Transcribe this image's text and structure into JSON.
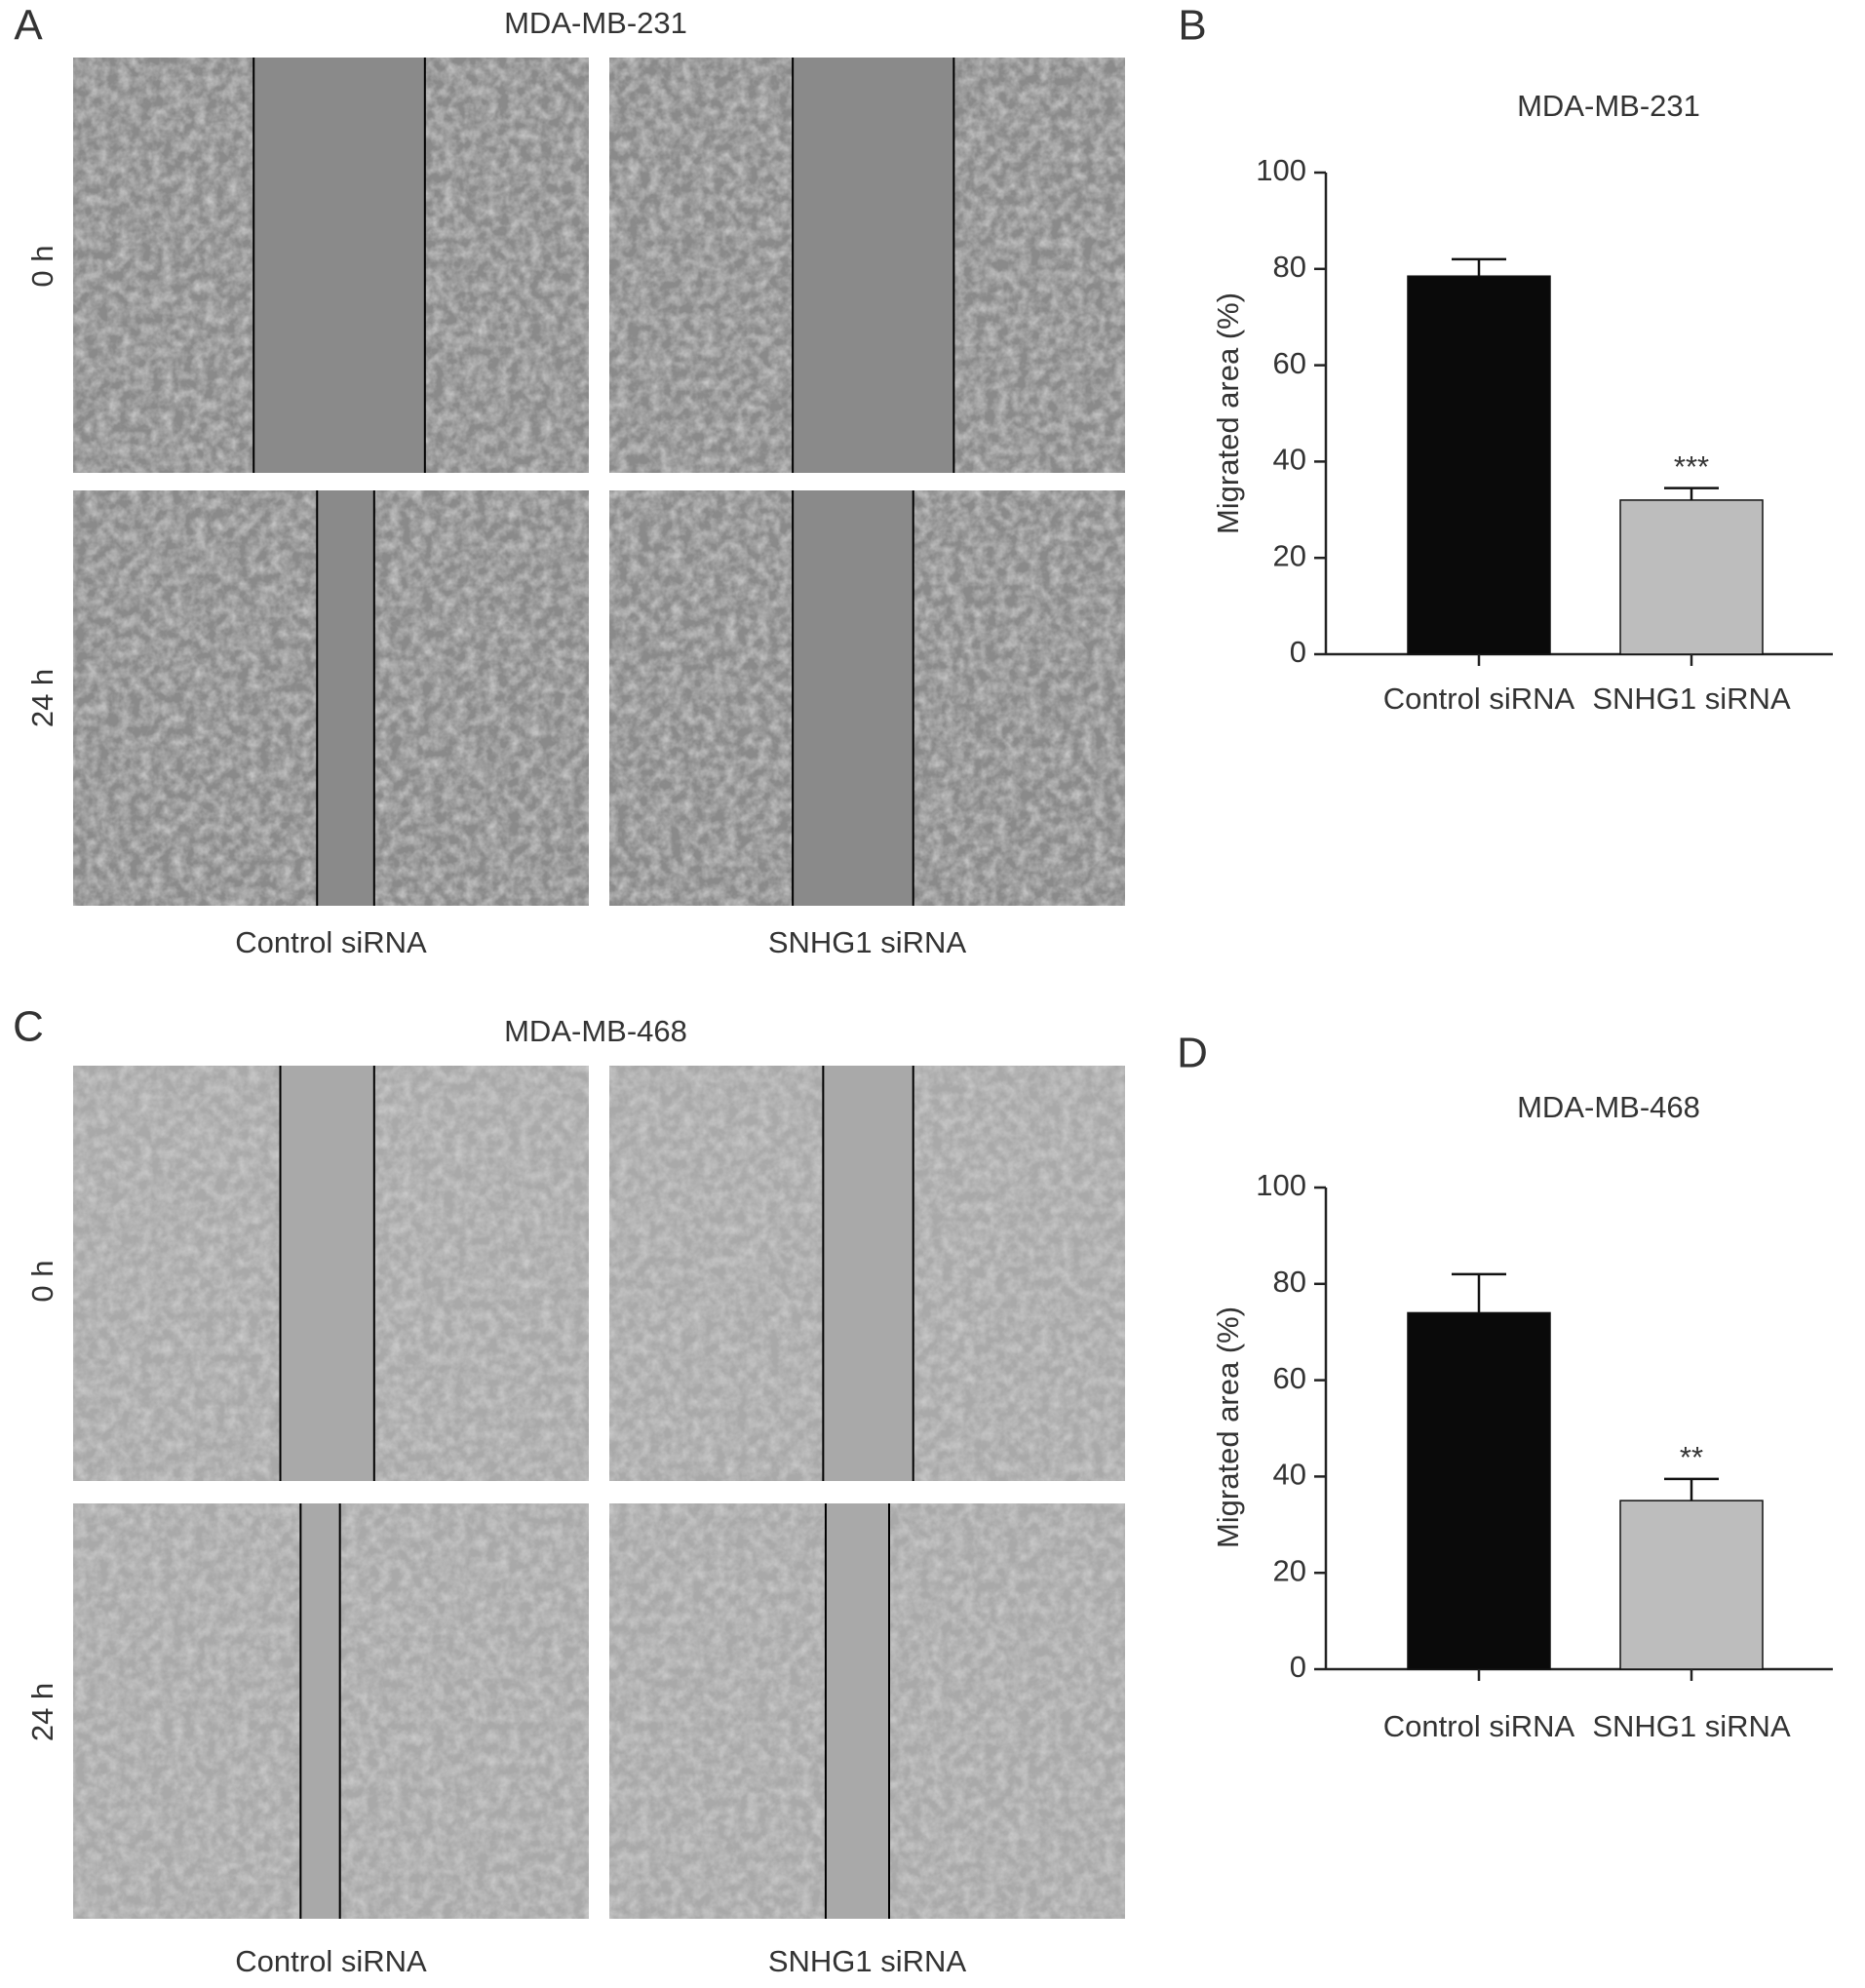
{
  "panels": [
    {
      "label": "A",
      "title": "MDA-MB-231",
      "rows": [
        "0 h",
        "24 h"
      ],
      "columns": [
        "Control siRNA",
        "SNHG1 siRNA"
      ]
    },
    {
      "label": "C",
      "title": "MDA-MB-468",
      "rows": [
        "0 h",
        "24 h"
      ],
      "columns": [
        "Control siRNA",
        "SNHG1 siRNA"
      ]
    }
  ],
  "chart_data": [
    {
      "type": "bar",
      "label": "B",
      "title": "MDA-MB-231",
      "y_label": "Migrated area (%)",
      "categories": [
        "Control siRNA",
        "SNHG1 siRNA"
      ],
      "values": [
        78.5,
        32
      ],
      "errors": [
        3.5,
        2.5
      ],
      "colors": [
        "#0a0a0a",
        "#bdbdbd"
      ],
      "annotations": [
        {
          "category": "SNHG1 siRNA",
          "text": "***"
        }
      ],
      "ylim": [
        0,
        100
      ],
      "yticks": [
        0,
        20,
        40,
        60,
        80,
        100
      ]
    },
    {
      "type": "bar",
      "label": "D",
      "title": "MDA-MB-468",
      "y_label": "Migrated area (%)",
      "categories": [
        "Control siRNA",
        "SNHG1 siRNA"
      ],
      "values": [
        74,
        35
      ],
      "errors": [
        8,
        4.5
      ],
      "colors": [
        "#0a0a0a",
        "#bdbdbd"
      ],
      "annotations": [
        {
          "category": "SNHG1 siRNA",
          "text": "**"
        }
      ],
      "ylim": [
        0,
        100
      ],
      "yticks": [
        0,
        20,
        40,
        60,
        80,
        100
      ]
    }
  ]
}
